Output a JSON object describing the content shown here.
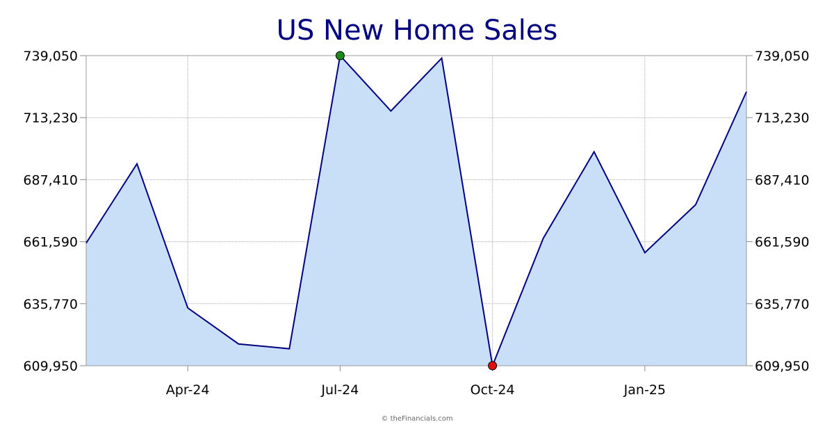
{
  "chart_data": {
    "type": "area",
    "title": "US New Home Sales",
    "x": [
      "Feb-24",
      "Mar-24",
      "Apr-24",
      "May-24",
      "Jun-24",
      "Jul-24",
      "Aug-24",
      "Sep-24",
      "Oct-24",
      "Nov-24",
      "Dec-24",
      "Jan-25",
      "Feb-25",
      "Mar-25"
    ],
    "values": [
      661000,
      694000,
      634000,
      619000,
      617000,
      739050,
      716000,
      738000,
      609950,
      663000,
      699000,
      657000,
      677000,
      724000
    ],
    "ylim": [
      609950,
      739050
    ],
    "yticks": [
      "739,050",
      "713,230",
      "687,410",
      "661,590",
      "635,770",
      "609,950"
    ],
    "ytick_values": [
      739050,
      713230,
      687410,
      661590,
      635770,
      609950
    ],
    "xticks": [
      "Apr-24",
      "Jul-24",
      "Oct-24",
      "Jan-25"
    ],
    "xtick_positions": [
      "Apr-24",
      "Jul-24",
      "Oct-24",
      "Jan-25"
    ],
    "max_marker": "Jul-24",
    "min_marker": "Oct-24",
    "grid": true,
    "colors": {
      "line": "#000080",
      "fill": "#c9dff7",
      "max_marker": "#1a8a1a",
      "min_marker": "#e01010",
      "grid": "#aaaaaa",
      "title": "#000080"
    }
  },
  "footer": {
    "credit": "© theFinancials.com"
  }
}
